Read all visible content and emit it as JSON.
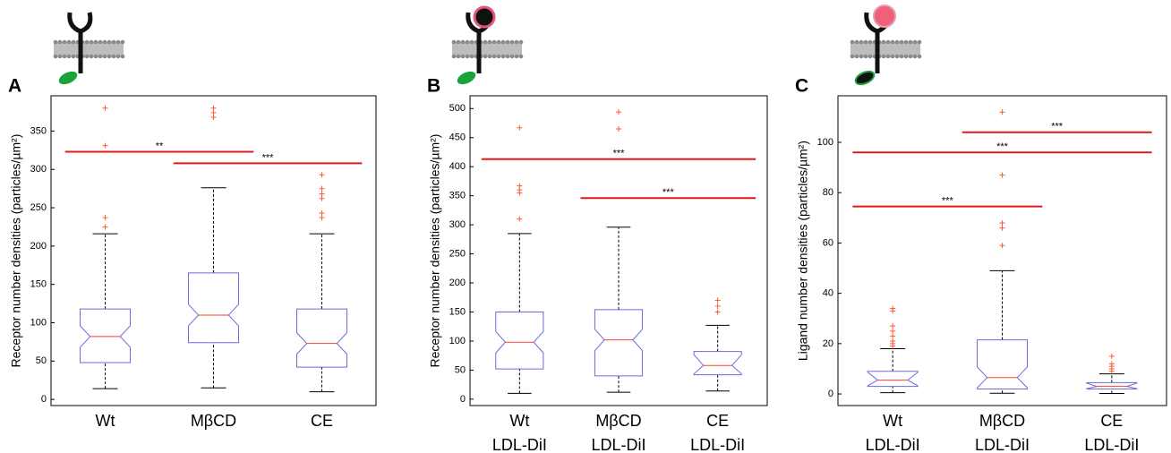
{
  "chart_data": [
    {
      "type": "box",
      "panel_label": "A",
      "ylabel": "Receptor number densities (particles/µm²)",
      "categories": [
        [
          "Wt"
        ],
        [
          "MβCD"
        ],
        [
          "CE"
        ]
      ],
      "boxes": [
        {
          "whisker_low": 14,
          "q1": 48,
          "median": 82,
          "q3": 118,
          "whisker_high": 216,
          "outliers": [
            225,
            237,
            331,
            380
          ]
        },
        {
          "whisker_low": 15,
          "q1": 74,
          "median": 110,
          "q3": 165,
          "whisker_high": 276,
          "outliers": [
            368,
            374,
            380
          ]
        },
        {
          "whisker_low": 10,
          "q1": 42,
          "median": 73,
          "q3": 118,
          "whisker_high": 216,
          "outliers": [
            237,
            243,
            262,
            268,
            275,
            293
          ]
        }
      ],
      "significance": [
        {
          "between": [
            0,
            1
          ],
          "y": 323,
          "label": "**"
        },
        {
          "between": [
            1,
            2
          ],
          "y": 308,
          "label": "***"
        }
      ],
      "ylim": [
        -8,
        396
      ],
      "yticks": [
        0,
        50,
        100,
        150,
        200,
        250,
        300,
        350
      ],
      "box_color": "#6b6bdc",
      "median_color": "#ff3b2f",
      "outlier_color": "#ff5a3c",
      "significance_color": "#e0191b"
    },
    {
      "type": "box",
      "panel_label": "B",
      "ylabel": "Receptor number densities (particles/µm²)",
      "categories": [
        [
          "Wt",
          "LDL-DiI"
        ],
        [
          "MβCD",
          "LDL-DiI"
        ],
        [
          "CE",
          "LDL-DiI"
        ]
      ],
      "boxes": [
        {
          "whisker_low": 10,
          "q1": 52,
          "median": 98,
          "q3": 150,
          "whisker_high": 285,
          "outliers": [
            310,
            355,
            360,
            367,
            467
          ]
        },
        {
          "whisker_low": 12,
          "q1": 40,
          "median": 102,
          "q3": 154,
          "whisker_high": 296,
          "outliers": [
            465,
            494
          ]
        },
        {
          "whisker_low": 14,
          "q1": 42,
          "median": 58,
          "q3": 82,
          "whisker_high": 127,
          "outliers": [
            150,
            160,
            170
          ]
        }
      ],
      "significance": [
        {
          "between": [
            0,
            2
          ],
          "y": 413,
          "label": "***"
        },
        {
          "between": [
            1,
            2
          ],
          "y": 346,
          "label": "***"
        }
      ],
      "ylim": [
        -11,
        522
      ],
      "yticks": [
        0,
        50,
        100,
        150,
        200,
        250,
        300,
        350,
        400,
        450,
        500
      ],
      "box_color": "#6b6bdc",
      "median_color": "#ff3b2f",
      "outlier_color": "#ff5a3c",
      "significance_color": "#e0191b"
    },
    {
      "type": "box",
      "panel_label": "C",
      "ylabel": "Ligand number densities (particles/µm²)",
      "categories": [
        [
          "Wt",
          "LDL-DiI"
        ],
        [
          "MβCD",
          "LDL-DiI"
        ],
        [
          "CE",
          "LDL-DiI"
        ]
      ],
      "boxes": [
        {
          "whisker_low": 0.5,
          "q1": 3,
          "median": 5.5,
          "q3": 9,
          "whisker_high": 18,
          "outliers": [
            19,
            20,
            21,
            23,
            25,
            27,
            33,
            34
          ]
        },
        {
          "whisker_low": 0.3,
          "q1": 2,
          "median": 6.5,
          "q3": 21.5,
          "whisker_high": 49,
          "outliers": [
            59,
            66,
            68,
            87,
            112
          ]
        },
        {
          "whisker_low": 0.2,
          "q1": 2,
          "median": 3,
          "q3": 4.5,
          "whisker_high": 8,
          "outliers": [
            9,
            10,
            11,
            12,
            15
          ]
        }
      ],
      "significance": [
        {
          "between": [
            0,
            1
          ],
          "y": 74.5,
          "label": "***"
        },
        {
          "between": [
            0,
            2
          ],
          "y": 96,
          "label": "***"
        },
        {
          "between": [
            1,
            2
          ],
          "y": 104,
          "label": "***"
        }
      ],
      "ylim": [
        -4.6,
        118.5
      ],
      "yticks": [
        0,
        20,
        40,
        60,
        80,
        100
      ],
      "box_color": "#6b6bdc",
      "median_color": "#ff3b2f",
      "outlier_color": "#ff5a3c",
      "significance_color": "#e0191b"
    }
  ]
}
